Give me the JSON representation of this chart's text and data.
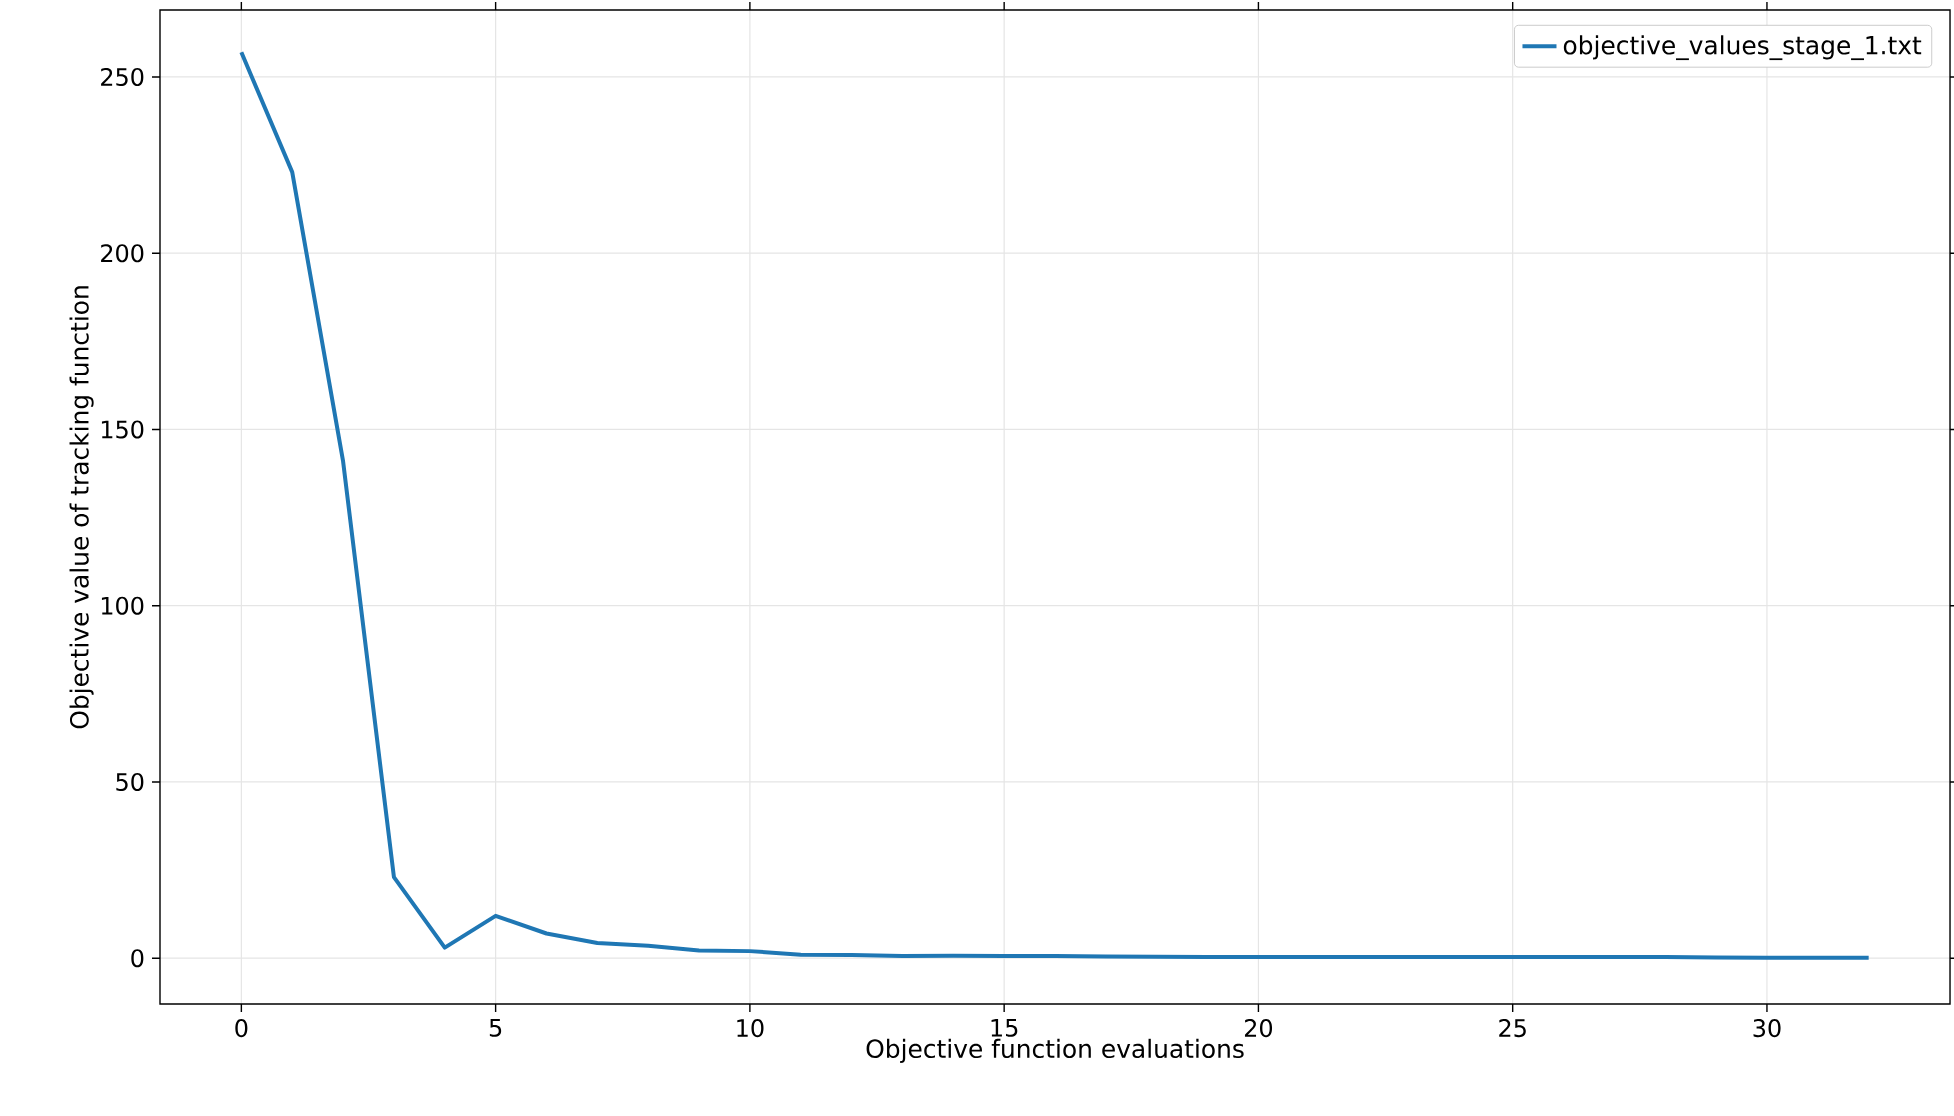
{
  "chart_data": {
    "type": "line",
    "xlabel": "Objective function evaluations",
    "ylabel": "Objective value of tracking function",
    "x": [
      0,
      1,
      2,
      3,
      4,
      5,
      6,
      7,
      8,
      9,
      10,
      11,
      12,
      13,
      14,
      15,
      16,
      17,
      18,
      19,
      20,
      21,
      22,
      23,
      24,
      25,
      26,
      27,
      28,
      29,
      30,
      31,
      32
    ],
    "series": [
      {
        "name": "objective_values_stage_1.txt",
        "color": "#1f77b4",
        "values": [
          257,
          223,
          141,
          23,
          3,
          12,
          7,
          4.3,
          3.5,
          2.2,
          2,
          1,
          0.9,
          0.6,
          0.7,
          0.6,
          0.6,
          0.5,
          0.4,
          0.3,
          0.3,
          0.3,
          0.3,
          0.3,
          0.3,
          0.3,
          0.3,
          0.3,
          0.3,
          0.2,
          0.1,
          0.1,
          0.1
        ]
      }
    ],
    "xlim": [
      -1.6,
      33.6
    ],
    "ylim": [
      -13,
      269
    ],
    "xticks": [
      0,
      5,
      10,
      15,
      20,
      25,
      30
    ],
    "yticks": [
      0,
      50,
      100,
      150,
      200,
      250
    ],
    "grid": true,
    "legend": "top right",
    "marker": "none",
    "line_style": "solid"
  }
}
